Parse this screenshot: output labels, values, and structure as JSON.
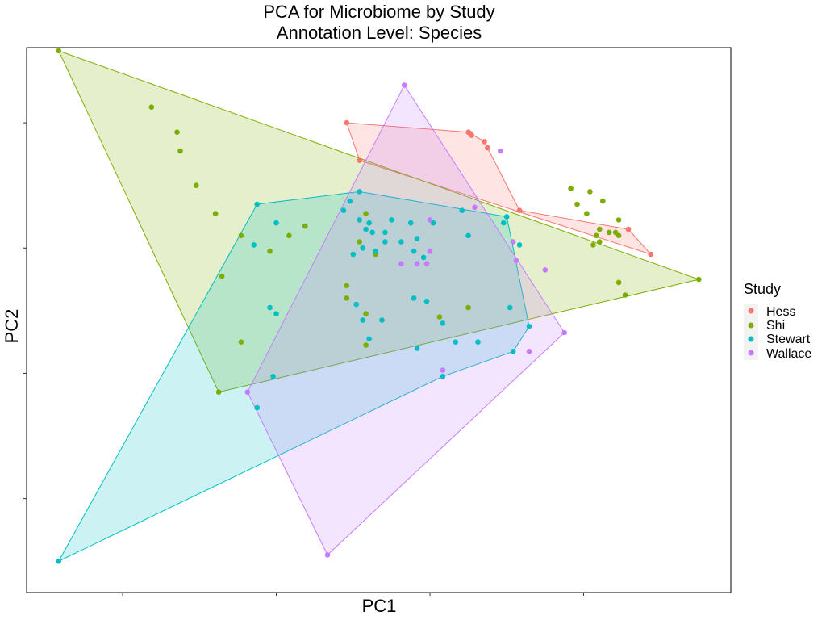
{
  "chart_data": {
    "type": "scatter",
    "title_lines": [
      "PCA for Microbiome by Study",
      "Annotation Level: Species"
    ],
    "xlabel": "PC1",
    "ylabel": "PC2",
    "xlim": [
      -0.5,
      10.5
    ],
    "ylim": [
      -0.5,
      8.2
    ],
    "x_ticks": [
      1,
      3.4,
      5.8,
      8.2
    ],
    "y_ticks": [
      1,
      3,
      5,
      7
    ],
    "grid": false,
    "hulls": true,
    "legend": {
      "title": "Study",
      "position": "right",
      "entries": [
        "Hess",
        "Shi",
        "Stewart",
        "Wallace"
      ]
    },
    "series": [
      {
        "name": "Hess",
        "color": "#F8766D",
        "points": [
          [
            4.5,
            7.0
          ],
          [
            4.7,
            6.4
          ],
          [
            6.4,
            6.85
          ],
          [
            6.45,
            6.8
          ],
          [
            6.65,
            6.7
          ],
          [
            6.7,
            6.6
          ],
          [
            7.2,
            5.6
          ],
          [
            8.9,
            5.3
          ],
          [
            9.25,
            4.9
          ],
          [
            6.43,
            6.83
          ]
        ],
        "hull": [
          [
            4.5,
            7.0
          ],
          [
            6.4,
            6.85
          ],
          [
            6.65,
            6.7
          ],
          [
            6.7,
            6.6
          ],
          [
            7.2,
            5.6
          ],
          [
            8.9,
            5.3
          ],
          [
            9.25,
            4.9
          ],
          [
            4.7,
            6.4
          ]
        ]
      },
      {
        "name": "Shi",
        "color": "#7CAE00",
        "points": [
          [
            0.0,
            8.15
          ],
          [
            1.45,
            7.25
          ],
          [
            1.85,
            6.85
          ],
          [
            1.9,
            6.55
          ],
          [
            2.15,
            6.0
          ],
          [
            2.45,
            5.55
          ],
          [
            2.85,
            5.2
          ],
          [
            2.55,
            4.55
          ],
          [
            2.85,
            3.5
          ],
          [
            2.5,
            2.7
          ],
          [
            4.8,
            5.55
          ],
          [
            4.7,
            5.1
          ],
          [
            4.95,
            4.9
          ],
          [
            4.5,
            4.4
          ],
          [
            4.5,
            4.2
          ],
          [
            4.8,
            3.95
          ],
          [
            5.95,
            3.9
          ],
          [
            6.4,
            4.05
          ],
          [
            4.8,
            3.45
          ],
          [
            8.0,
            5.95
          ],
          [
            8.3,
            5.9
          ],
          [
            8.5,
            5.75
          ],
          [
            8.1,
            5.7
          ],
          [
            8.25,
            5.55
          ],
          [
            8.75,
            5.45
          ],
          [
            8.45,
            5.3
          ],
          [
            8.4,
            5.2
          ],
          [
            8.6,
            5.25
          ],
          [
            8.7,
            5.25
          ],
          [
            8.75,
            5.2
          ],
          [
            8.35,
            5.05
          ],
          [
            8.45,
            5.1
          ],
          [
            8.75,
            4.45
          ],
          [
            8.85,
            4.25
          ],
          [
            10.0,
            4.5
          ],
          [
            3.6,
            5.2
          ],
          [
            3.3,
            4.95
          ],
          [
            3.85,
            5.35
          ]
        ],
        "hull": [
          [
            0.0,
            8.15
          ],
          [
            10.0,
            4.5
          ],
          [
            2.5,
            2.7
          ]
        ]
      },
      {
        "name": "Stewart",
        "color": "#00BFC4",
        "points": [
          [
            4.7,
            5.9
          ],
          [
            4.55,
            5.75
          ],
          [
            4.45,
            5.6
          ],
          [
            3.1,
            5.7
          ],
          [
            3.4,
            5.4
          ],
          [
            4.7,
            5.45
          ],
          [
            4.85,
            5.4
          ],
          [
            4.8,
            5.3
          ],
          [
            5.2,
            5.45
          ],
          [
            5.1,
            5.25
          ],
          [
            4.9,
            5.25
          ],
          [
            4.75,
            5.0
          ],
          [
            4.95,
            4.95
          ],
          [
            5.1,
            5.1
          ],
          [
            5.35,
            5.1
          ],
          [
            5.5,
            5.4
          ],
          [
            5.6,
            5.15
          ],
          [
            5.55,
            4.95
          ],
          [
            5.7,
            4.85
          ],
          [
            5.85,
            5.4
          ],
          [
            6.3,
            5.6
          ],
          [
            6.4,
            5.2
          ],
          [
            7.0,
            5.5
          ],
          [
            6.95,
            5.4
          ],
          [
            7.2,
            5.05
          ],
          [
            3.05,
            5.05
          ],
          [
            3.3,
            4.05
          ],
          [
            3.4,
            3.95
          ],
          [
            4.6,
            4.9
          ],
          [
            4.65,
            4.1
          ],
          [
            5.05,
            3.85
          ],
          [
            4.85,
            3.55
          ],
          [
            5.6,
            3.4
          ],
          [
            5.75,
            4.15
          ],
          [
            6.0,
            3.8
          ],
          [
            6.2,
            3.5
          ],
          [
            6.55,
            3.5
          ],
          [
            7.35,
            3.75
          ],
          [
            7.1,
            3.35
          ],
          [
            5.55,
            4.2
          ],
          [
            6.0,
            2.95
          ],
          [
            3.35,
            2.95
          ],
          [
            3.1,
            2.45
          ],
          [
            0.0,
            0.0
          ],
          [
            4.75,
            3.85
          ],
          [
            7.05,
            4.05
          ]
        ],
        "hull": [
          [
            0.0,
            0.0
          ],
          [
            3.1,
            5.7
          ],
          [
            4.7,
            5.9
          ],
          [
            7.0,
            5.5
          ],
          [
            7.35,
            3.75
          ],
          [
            7.1,
            3.35
          ],
          [
            6.0,
            2.95
          ]
        ]
      },
      {
        "name": "Wallace",
        "color": "#C77CFF",
        "points": [
          [
            5.4,
            7.6
          ],
          [
            6.9,
            6.55
          ],
          [
            6.5,
            5.65
          ],
          [
            7.1,
            5.1
          ],
          [
            7.15,
            4.8
          ],
          [
            7.6,
            4.65
          ],
          [
            7.9,
            3.65
          ],
          [
            7.35,
            3.35
          ],
          [
            5.8,
            5.45
          ],
          [
            5.8,
            4.95
          ],
          [
            5.6,
            4.75
          ],
          [
            5.35,
            4.75
          ],
          [
            5.75,
            4.75
          ],
          [
            2.95,
            2.7
          ],
          [
            6.0,
            3.05
          ],
          [
            4.2,
            0.1
          ]
        ],
        "hull": [
          [
            5.4,
            7.6
          ],
          [
            7.9,
            3.65
          ],
          [
            4.2,
            0.1
          ],
          [
            2.95,
            2.7
          ]
        ]
      }
    ]
  }
}
